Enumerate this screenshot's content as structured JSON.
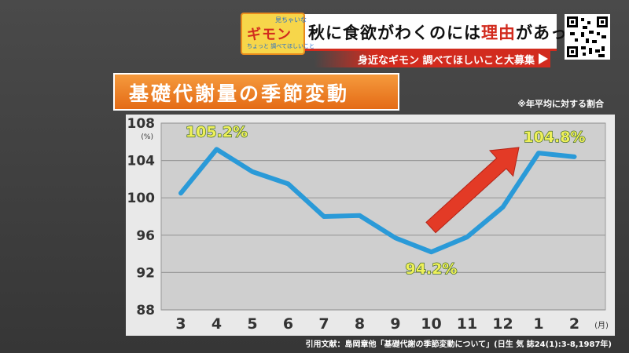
{
  "banner": {
    "headline_black_1": "秋に食欲がわくのには",
    "headline_red": "理由",
    "headline_black_2": "があった",
    "logo_main": "ギモン",
    "logo_sub_top": "見ちゃいな",
    "logo_sub_bottom": "ちょっと 調べてほしいこと"
  },
  "subbar": {
    "text": "身近なギモン 調べてほしいこと大募集"
  },
  "title": "基礎代謝量の季節変動",
  "note": "※年平均に対する割合",
  "citation": "引用文献：島岡章他「基礎代謝の季節変動について」(日生 気 誌24(1):3-8,1987年)",
  "chart_data": {
    "type": "line",
    "title": "基礎代謝量の季節変動",
    "xlabel": "(月)",
    "ylabel": "(%)",
    "categories": [
      "3",
      "4",
      "5",
      "6",
      "7",
      "8",
      "9",
      "10",
      "11",
      "12",
      "1",
      "2"
    ],
    "values": [
      100.5,
      105.2,
      102.8,
      101.5,
      98.0,
      98.1,
      95.7,
      94.2,
      95.8,
      99.0,
      104.8,
      104.4
    ],
    "ylim": [
      88,
      108
    ],
    "yticks": [
      "108",
      "104",
      "100",
      "96",
      "92",
      "88"
    ],
    "data_labels": [
      {
        "index": 1,
        "text": "105.2%"
      },
      {
        "index": 7,
        "text": "94.2%"
      },
      {
        "index": 10,
        "text": "104.8%"
      }
    ],
    "line_color": "#2a9ad8",
    "arrow_color": "#e33a26",
    "label_color": "#eef05a",
    "grid": true
  }
}
